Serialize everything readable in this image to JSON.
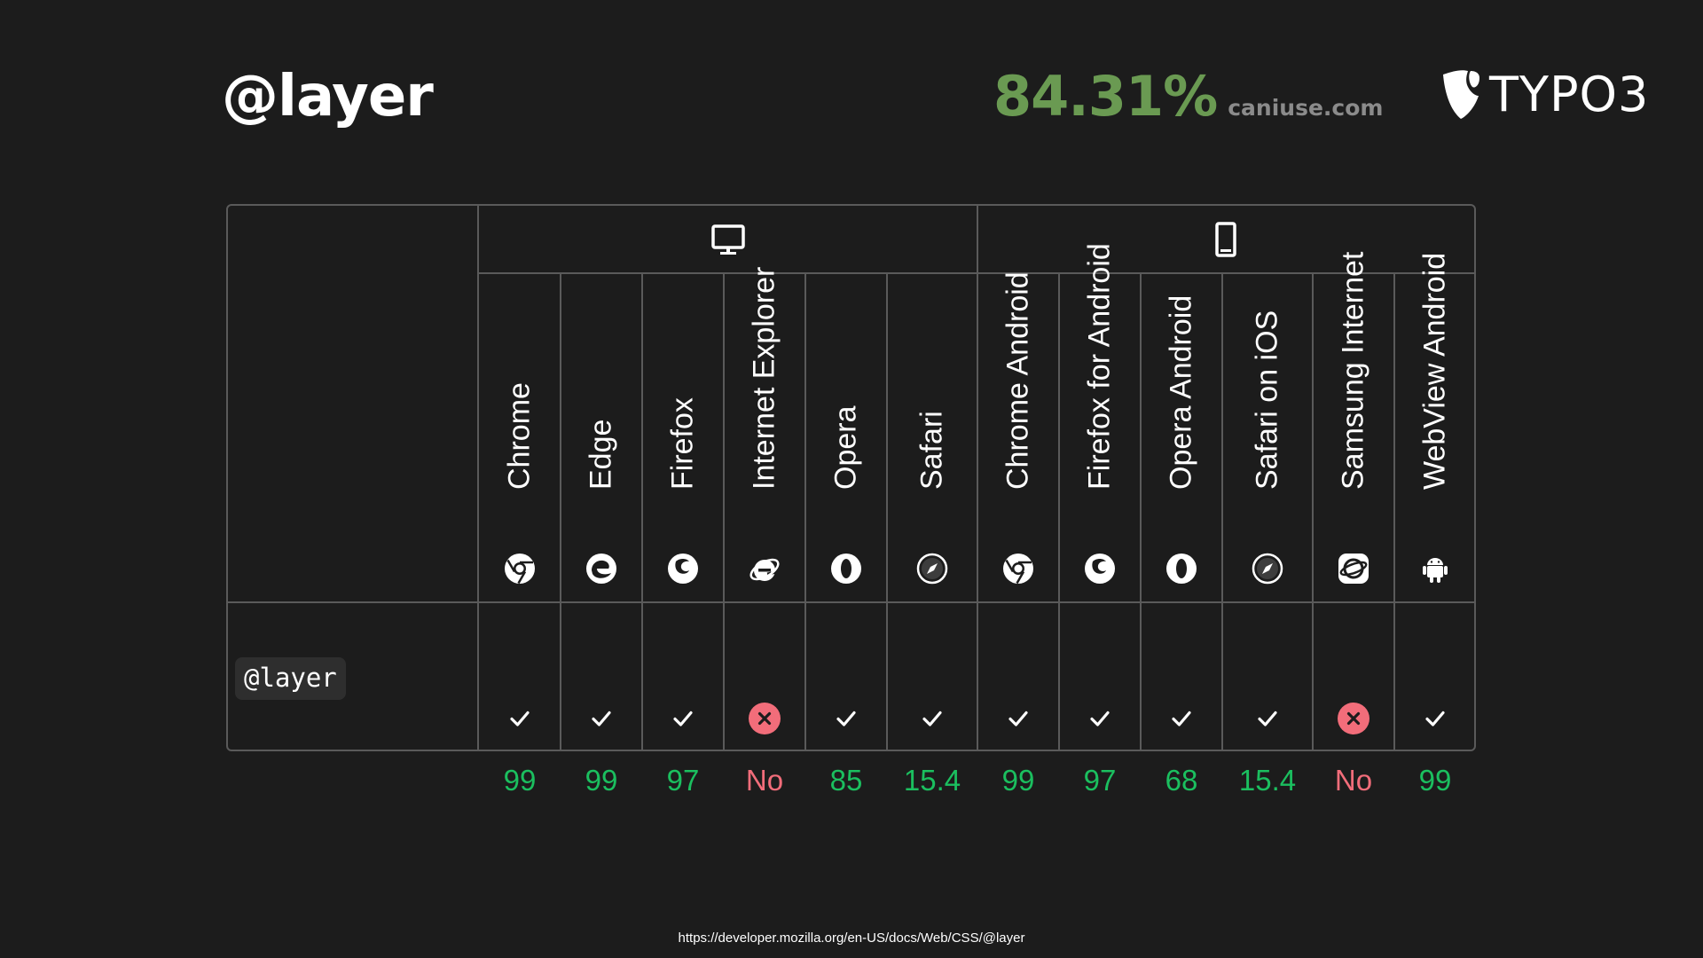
{
  "title": "@layer",
  "stat": {
    "percent": "84.31%",
    "source": "caniuse.com"
  },
  "logo": {
    "text": "TYPO3"
  },
  "groups": [
    {
      "name": "desktop",
      "icon": "desktop-icon"
    },
    {
      "name": "mobile",
      "icon": "mobile-icon"
    }
  ],
  "feature": "@layer",
  "browsers": [
    {
      "name": "Chrome",
      "icon": "chrome-icon",
      "supported": true,
      "version": "99"
    },
    {
      "name": "Edge",
      "icon": "edge-icon",
      "supported": true,
      "version": "99"
    },
    {
      "name": "Firefox",
      "icon": "firefox-icon",
      "supported": true,
      "version": "97"
    },
    {
      "name": "Internet Explorer",
      "icon": "internet-explorer-icon",
      "supported": false,
      "version": "No"
    },
    {
      "name": "Opera",
      "icon": "opera-icon",
      "supported": true,
      "version": "85"
    },
    {
      "name": "Safari",
      "icon": "safari-icon",
      "supported": true,
      "version": "15.4"
    },
    {
      "name": "Chrome Android",
      "icon": "chrome-icon",
      "supported": true,
      "version": "99"
    },
    {
      "name": "Firefox for Android",
      "icon": "firefox-icon",
      "supported": true,
      "version": "97"
    },
    {
      "name": "Opera Android",
      "icon": "opera-icon",
      "supported": true,
      "version": "68"
    },
    {
      "name": "Safari on iOS",
      "icon": "safari-icon",
      "supported": true,
      "version": "15.4"
    },
    {
      "name": "Samsung Internet",
      "icon": "samsung-internet-icon",
      "supported": false,
      "version": "No"
    },
    {
      "name": "WebView Android",
      "icon": "android-icon",
      "supported": true,
      "version": "99"
    }
  ],
  "colors": {
    "yes": "#1bbf5f",
    "no": "#f26d7a",
    "percent": "#6a9a52",
    "border": "#5a5a5a"
  },
  "footer": "https://developer.mozilla.org/en-US/docs/Web/CSS/@layer"
}
